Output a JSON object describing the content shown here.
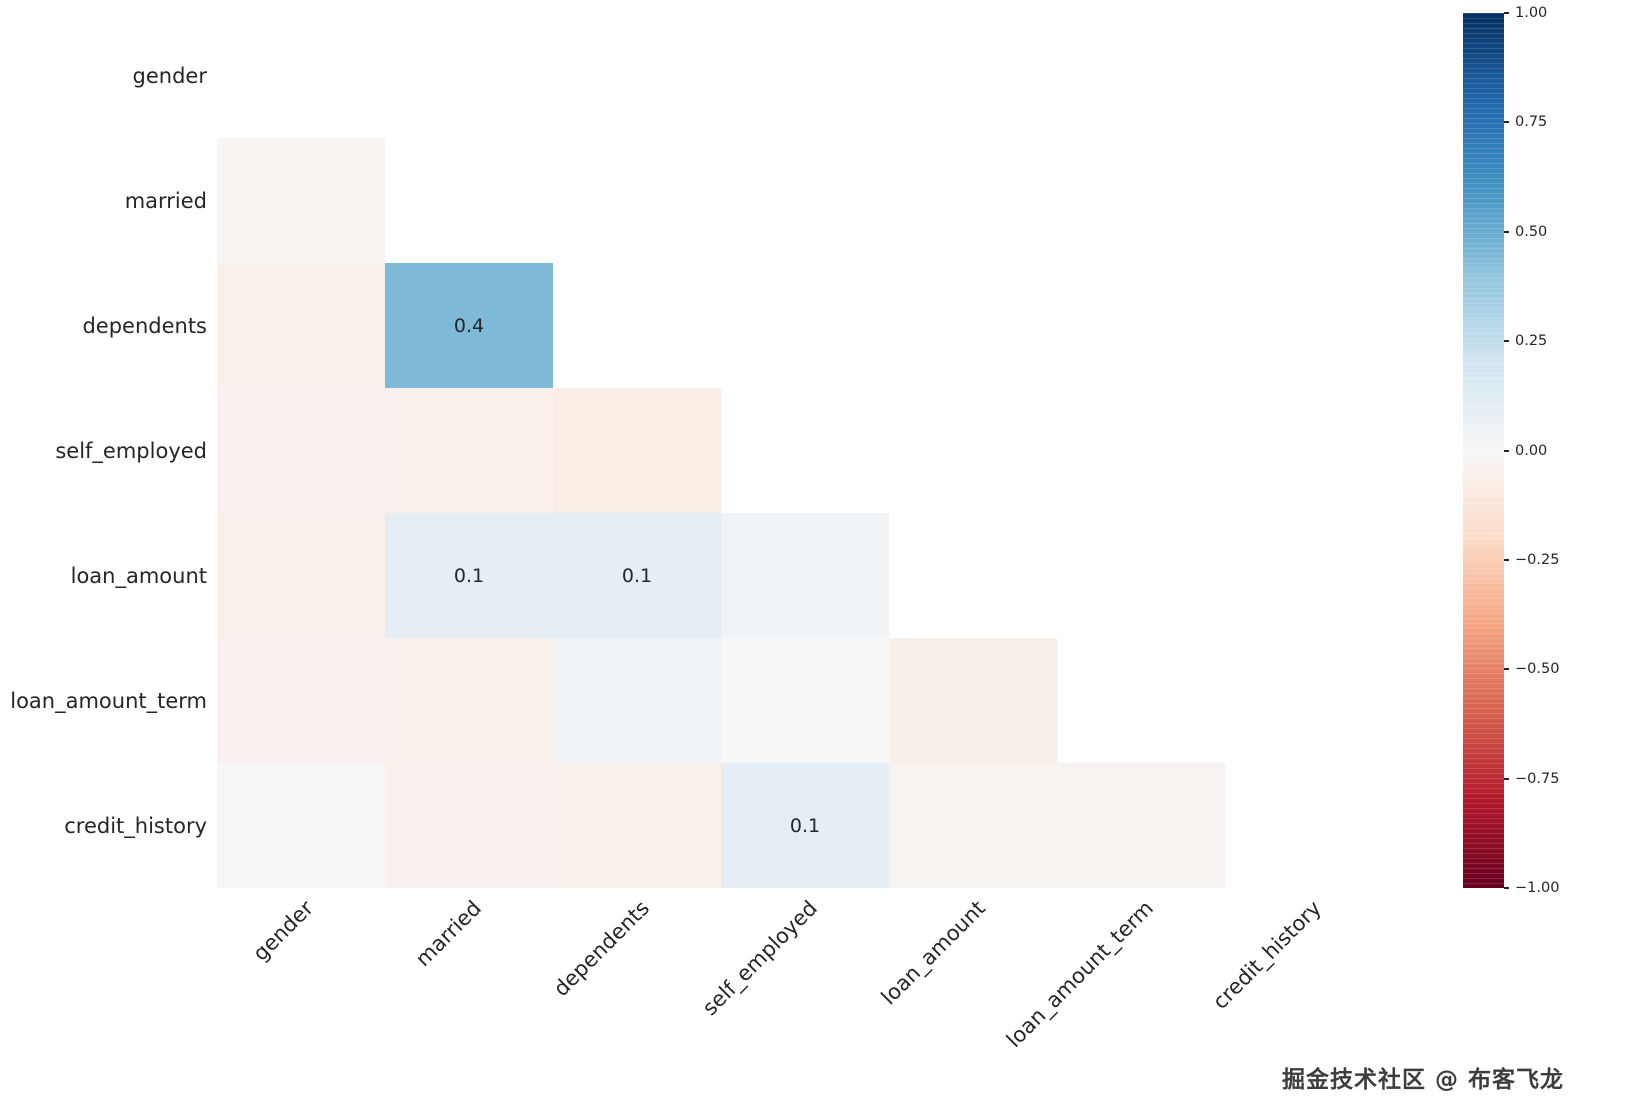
{
  "chart_data": {
    "type": "heatmap",
    "title": "",
    "subtitle": "",
    "description": "Lower-triangle correlation matrix heatmap (diagonal and upper triangle masked), RdBu colormap",
    "variables": [
      "gender",
      "married",
      "dependents",
      "self_employed",
      "loan_amount",
      "loan_amount_term",
      "credit_history"
    ],
    "masked": "diagonal and upper triangle",
    "colormap": "RdBu",
    "vmin": -1,
    "vmax": 1,
    "rows": [
      {
        "name": "gender",
        "values": [],
        "labels": []
      },
      {
        "name": "married",
        "values": [
          -0.02
        ],
        "labels": [
          ""
        ]
      },
      {
        "name": "dependents",
        "values": [
          -0.05,
          0.45
        ],
        "labels": [
          "",
          "0.4"
        ]
      },
      {
        "name": "self_employed",
        "values": [
          -0.04,
          -0.05,
          -0.07
        ],
        "labels": [
          "",
          "",
          ""
        ]
      },
      {
        "name": "loan_amount",
        "values": [
          -0.05,
          0.1,
          0.1,
          0.03
        ],
        "labels": [
          "",
          "0.1",
          "0.1",
          ""
        ]
      },
      {
        "name": "loan_amount_term",
        "values": [
          -0.04,
          -0.05,
          0.05,
          0.0,
          -0.06
        ],
        "labels": [
          "",
          "",
          "",
          "",
          ""
        ]
      },
      {
        "name": "credit_history",
        "values": [
          0.0,
          -0.04,
          -0.05,
          0.1,
          -0.03,
          -0.03
        ],
        "labels": [
          "",
          "",
          "",
          "0.1",
          "",
          ""
        ]
      }
    ],
    "colorbar_ticks": [
      "1.00",
      "0.75",
      "0.50",
      "0.25",
      "0.00",
      "−0.25",
      "−0.50",
      "−0.75",
      "−1.00"
    ],
    "colorbar_tick_values": [
      1,
      0.75,
      0.5,
      0.25,
      0,
      -0.25,
      -0.5,
      -0.75,
      -1
    ],
    "colormap_anchors": [
      {
        "value": -1.0,
        "color": "#67001f"
      },
      {
        "value": -0.8,
        "color": "#b2182b"
      },
      {
        "value": -0.6,
        "color": "#d6604d"
      },
      {
        "value": -0.4,
        "color": "#f4a582"
      },
      {
        "value": -0.2,
        "color": "#fddbc7"
      },
      {
        "value": 0.0,
        "color": "#f7f7f7"
      },
      {
        "value": 0.2,
        "color": "#d1e5f0"
      },
      {
        "value": 0.4,
        "color": "#92c5de"
      },
      {
        "value": 0.6,
        "color": "#4393c3"
      },
      {
        "value": 0.8,
        "color": "#2166ac"
      },
      {
        "value": 1.0,
        "color": "#053061"
      }
    ],
    "legend_position": "right colorbar",
    "grid": false
  },
  "watermark": {
    "text": "掘金技术社区 @ 布客飞龙"
  }
}
